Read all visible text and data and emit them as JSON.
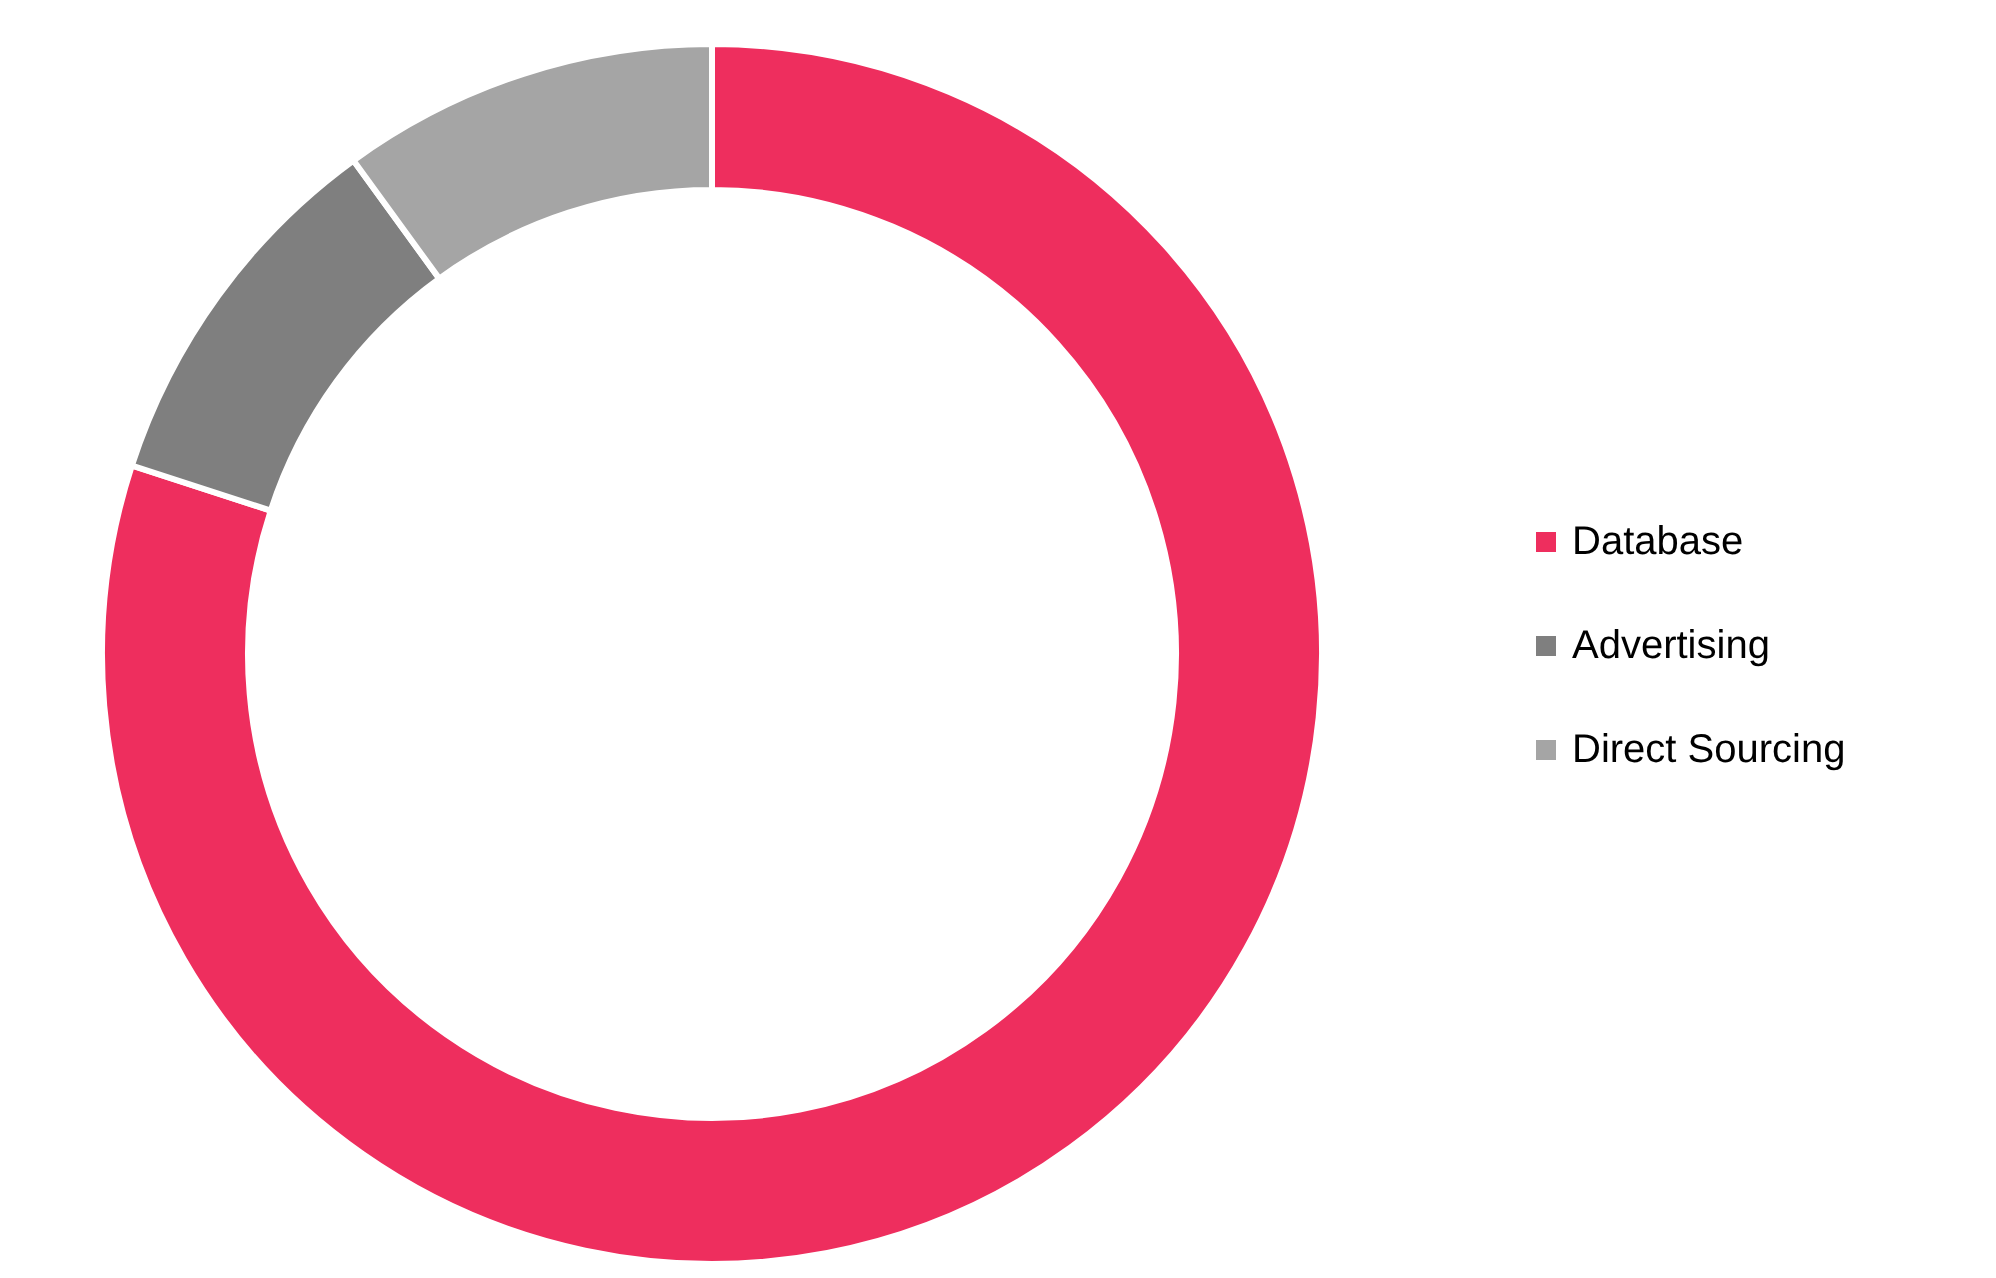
{
  "chart_data": {
    "type": "donut",
    "categories": [
      "Database",
      "Advertising",
      "Direct Sourcing"
    ],
    "values": [
      80,
      10,
      10
    ],
    "colors": [
      "#ee2e5e",
      "#7f7f7f",
      "#a5a5a5"
    ],
    "legend": "right"
  }
}
